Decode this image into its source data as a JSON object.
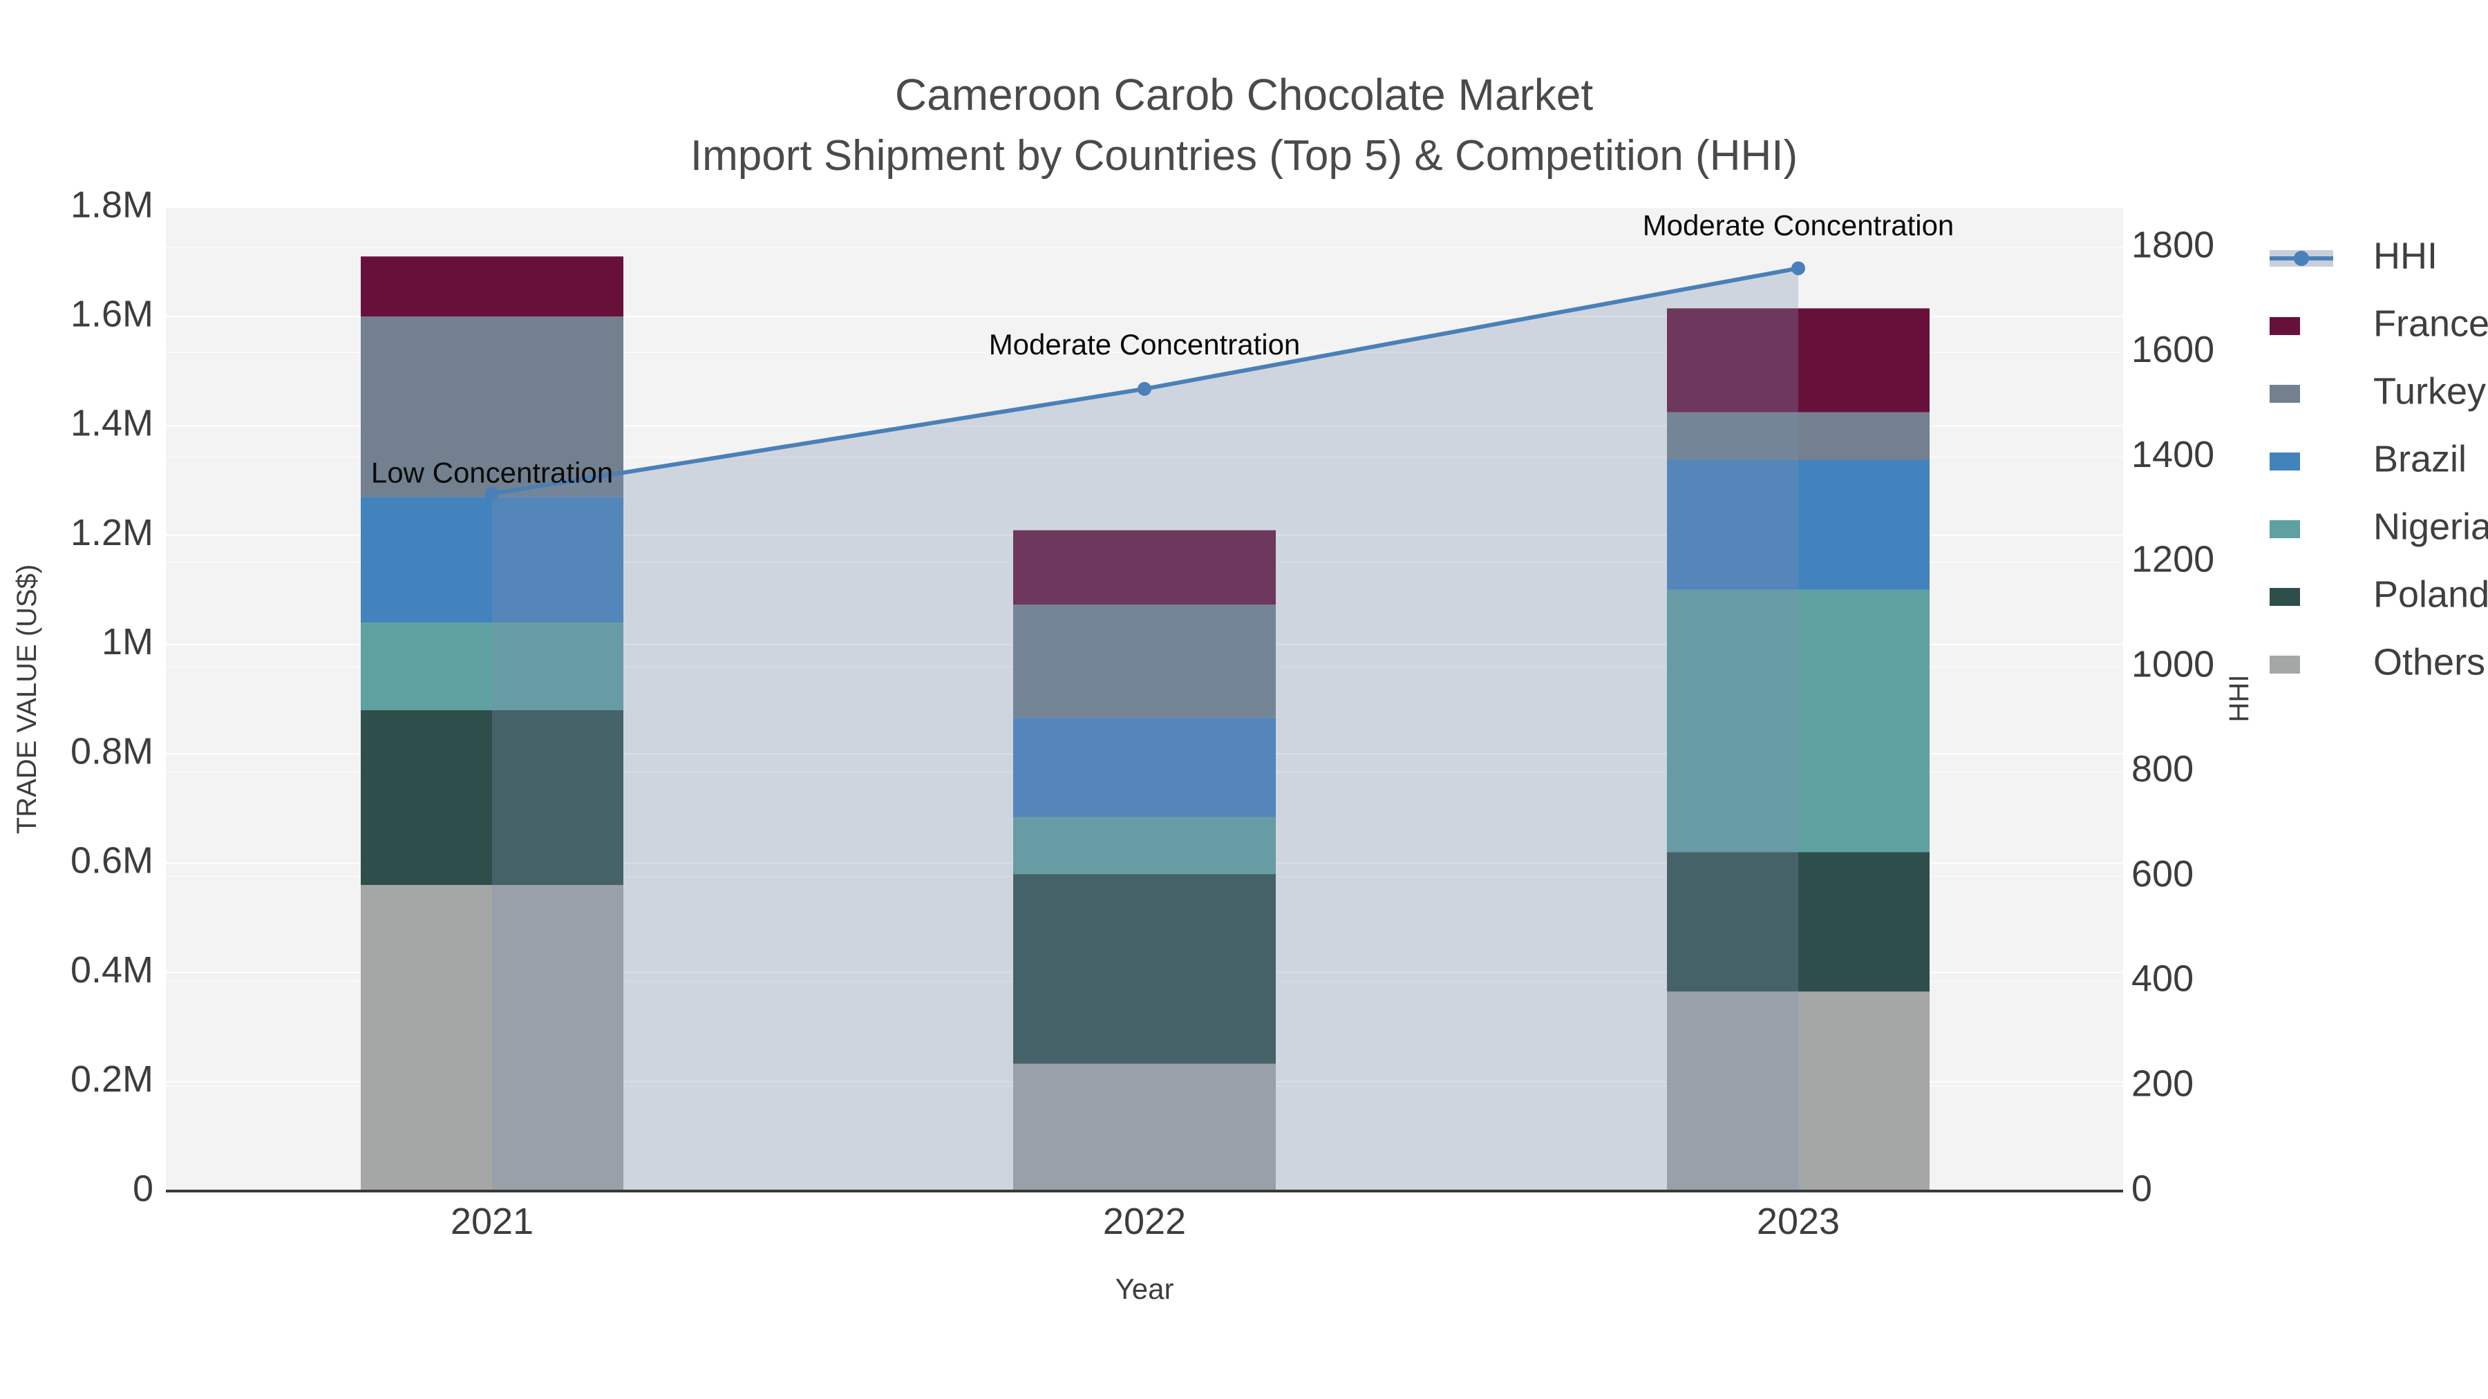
{
  "title": {
    "line1": "Cameroon Carob Chocolate Market",
    "line2": "Import Shipment by Countries (Top 5) & Competition (HHI)"
  },
  "axes": {
    "x": {
      "title": "Year",
      "categories": [
        "2021",
        "2022",
        "2023"
      ]
    },
    "y_left": {
      "title": "TRADE VALUE (US$)",
      "ticks": [
        "1.8M",
        "1.6M",
        "1.4M",
        "1.2M",
        "1M",
        "0.8M",
        "0.6M",
        "0.4M",
        "0.2M",
        "0"
      ]
    },
    "y_right": {
      "title": "HHI",
      "ticks": [
        "1800",
        "1600",
        "1400",
        "1200",
        "1000",
        "800",
        "600",
        "400",
        "200",
        "0"
      ]
    }
  },
  "legend": {
    "items": [
      {
        "label": "HHI",
        "type": "line",
        "color": "#4a80b8",
        "band": "#c9cfda"
      },
      {
        "label": "France",
        "type": "box",
        "color": "#67113a"
      },
      {
        "label": "Turkey",
        "type": "box",
        "color": "#72808f"
      },
      {
        "label": "Brazil",
        "type": "box",
        "color": "#4282bd"
      },
      {
        "label": "Nigeria",
        "type": "box",
        "color": "#5ea1a0"
      },
      {
        "label": "Poland",
        "type": "box",
        "color": "#2e4e4b"
      },
      {
        "label": "Others",
        "type": "box",
        "color": "#a5a7a7"
      }
    ]
  },
  "annotations": [
    {
      "category": "2021",
      "text": "Low Concentration"
    },
    {
      "category": "2022",
      "text": "Moderate Concentration"
    },
    {
      "category": "2023",
      "text": "Moderate Concentration"
    }
  ],
  "chart_data": {
    "type": "bar+line",
    "title": "Cameroon Carob Chocolate Market — Import Shipment by Countries (Top 5) & Competition (HHI)",
    "categories": [
      "2021",
      "2022",
      "2023"
    ],
    "stacked_bar_series_bottom_to_top": [
      {
        "name": "Others",
        "color": "#a5a7a7",
        "values": [
          560000,
          233000,
          365000
        ]
      },
      {
        "name": "Poland",
        "color": "#2e4e4b",
        "values": [
          320000,
          347000,
          255000
        ]
      },
      {
        "name": "Nigeria",
        "color": "#5ea1a0",
        "values": [
          160000,
          104000,
          480000
        ]
      },
      {
        "name": "Brazil",
        "color": "#4282bd",
        "values": [
          230000,
          182000,
          238000
        ]
      },
      {
        "name": "Turkey",
        "color": "#72808f",
        "values": [
          330000,
          207000,
          87000
        ]
      },
      {
        "name": "France",
        "color": "#67113a",
        "values": [
          110000,
          136000,
          190000
        ]
      }
    ],
    "bar_totals": [
      1710000,
      1209000,
      1615000
    ],
    "line_series": {
      "name": "HHI",
      "color": "#4a80b8",
      "area_fill": "rgba(125,145,175,0.30)",
      "values": [
        1330,
        1530,
        1760
      ]
    },
    "xlabel": "Year",
    "ylabel_left": "TRADE VALUE (US$)",
    "ylabel_right": "HHI",
    "ylim_left": [
      0,
      1800000
    ],
    "ylim_right_ticks": [
      0,
      1800
    ],
    "grid": true,
    "legend_position": "right"
  }
}
